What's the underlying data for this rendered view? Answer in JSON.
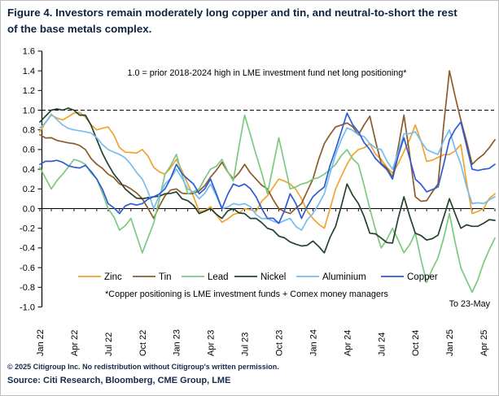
{
  "figure": {
    "title": "Figure 4. Investors remain moderately long copper and tin, and neutral-to-short the rest of the base metals complex.",
    "footer": {
      "copyright": "© 2025 Citigroup Inc. No redistribution without Citigroup's written permission.",
      "source": "Source: Citi Research, Bloomberg, CME Group, LME"
    }
  },
  "chart": {
    "annotation": "1.0 = prior 2018-2024 high in LME investment fund net long positioning*",
    "footnote": "*Copper positioning is LME investment funds + Comex money managers",
    "as_of": "To 23-May"
  },
  "colors": {
    "navy": "#0e2240",
    "axis": "#000000",
    "border": "#bdbdbd"
  },
  "chart_data": {
    "type": "line",
    "title": "Base metals investor net long positioning vs prior 2018-2024 high",
    "xlabel": "",
    "ylabel": "",
    "ylim": [
      -1.0,
      1.6
    ],
    "reference_line": 1.0,
    "grid": false,
    "legend_position": "bottom",
    "y_ticks": [
      1.6,
      1.4,
      1.2,
      1.0,
      0.8,
      0.6,
      0.4,
      0.2,
      0.0,
      -0.2,
      -0.4,
      -0.6,
      -0.8,
      -1.0
    ],
    "x_tick_labels": [
      "Jan 22",
      "Apr 22",
      "Jul 22",
      "Oct 22",
      "Jan 23",
      "Apr 23",
      "Jul 23",
      "Oct 23",
      "Jan 24",
      "Apr 24",
      "Jul 24",
      "Oct 24",
      "Jan 25",
      "Apr 25"
    ],
    "x_monthly": [
      "Jan 22",
      "Feb 22",
      "Mar 22",
      "Apr 22",
      "May 22",
      "Jun 22",
      "Jul 22",
      "Aug 22",
      "Sep 22",
      "Oct 22",
      "Nov 22",
      "Dec 22",
      "Jan 23",
      "Feb 23",
      "Mar 23",
      "Apr 23",
      "May 23",
      "Jun 23",
      "Jul 23",
      "Aug 23",
      "Sep 23",
      "Oct 23",
      "Nov 23",
      "Dec 23",
      "Jan 24",
      "Feb 24",
      "Mar 24",
      "Apr 24",
      "May 24",
      "Jun 24",
      "Jul 24",
      "Aug 24",
      "Sep 24",
      "Oct 24",
      "Nov 24",
      "Dec 24",
      "Jan 25",
      "Feb 25",
      "Mar 25",
      "Apr 25",
      "May 25"
    ],
    "series": [
      {
        "name": "Zinc",
        "color": "#f0a32f",
        "values": [
          0.78,
          0.95,
          0.9,
          0.97,
          0.93,
          0.8,
          0.83,
          0.62,
          0.57,
          0.6,
          0.42,
          0.35,
          0.5,
          0.25,
          -0.03,
          0.02,
          -0.14,
          -0.06,
          0.0,
          -0.03,
          0.13,
          0.3,
          0.25,
          0.1,
          -0.1,
          -0.2,
          0.2,
          0.45,
          0.6,
          0.66,
          0.5,
          0.36,
          0.58,
          0.85,
          0.48,
          0.52,
          0.55,
          0.65,
          -0.05,
          0.0,
          0.15
        ]
      },
      {
        "name": "Tin",
        "color": "#8c5a2b",
        "values": [
          0.75,
          0.72,
          0.68,
          0.66,
          0.6,
          0.45,
          0.35,
          0.25,
          0.2,
          0.1,
          -0.1,
          0.13,
          0.2,
          0.15,
          0.18,
          0.32,
          0.47,
          0.3,
          0.45,
          0.3,
          0.2,
          0.0,
          -0.05,
          0.05,
          0.3,
          0.66,
          0.83,
          0.87,
          0.75,
          0.94,
          0.46,
          0.32,
          0.95,
          0.12,
          0.08,
          0.25,
          1.4,
          0.9,
          0.45,
          0.55,
          0.7
        ]
      },
      {
        "name": "Lead",
        "color": "#7cc97f",
        "values": [
          0.42,
          0.2,
          0.35,
          0.5,
          0.45,
          0.3,
          0.0,
          -0.22,
          -0.1,
          -0.45,
          -0.15,
          0.35,
          0.55,
          0.15,
          0.2,
          0.4,
          0.5,
          0.28,
          0.95,
          0.55,
          0.15,
          0.72,
          0.2,
          0.25,
          0.3,
          0.35,
          0.45,
          0.6,
          0.45,
          0.0,
          -0.4,
          -0.2,
          -0.45,
          -0.25,
          -0.75,
          -0.5,
          -0.05,
          -0.6,
          -0.85,
          -0.55,
          -0.3
        ]
      },
      {
        "name": "Nickel",
        "color": "#24432c",
        "values": [
          0.88,
          1.0,
          1.0,
          1.0,
          0.95,
          0.7,
          0.45,
          0.28,
          0.15,
          0.1,
          0.12,
          0.15,
          0.17,
          0.08,
          -0.05,
          0.0,
          -0.1,
          0.0,
          -0.05,
          -0.1,
          -0.2,
          -0.28,
          -0.34,
          -0.38,
          -0.33,
          -0.45,
          -0.18,
          0.25,
          0.05,
          -0.25,
          -0.3,
          -0.35,
          0.12,
          -0.25,
          -0.32,
          -0.27,
          0.1,
          -0.2,
          -0.18,
          -0.15,
          -0.12
        ]
      },
      {
        "name": "Aluminium",
        "color": "#77bcf1",
        "values": [
          0.82,
          0.96,
          0.85,
          0.8,
          0.78,
          0.72,
          0.6,
          0.55,
          0.45,
          0.3,
          0.0,
          0.25,
          0.4,
          0.2,
          0.1,
          0.25,
          0.0,
          0.05,
          0.05,
          -0.06,
          -0.1,
          -0.15,
          -0.1,
          -0.22,
          -0.05,
          0.15,
          0.55,
          0.82,
          0.75,
          0.66,
          0.6,
          0.4,
          0.76,
          0.78,
          0.6,
          0.55,
          0.8,
          0.45,
          0.05,
          0.05,
          0.12
        ]
      },
      {
        "name": "Copper",
        "color": "#2e5cd5",
        "values": [
          0.45,
          0.48,
          0.47,
          0.42,
          0.44,
          0.3,
          0.05,
          -0.05,
          0.05,
          0.05,
          0.12,
          0.2,
          0.45,
          0.3,
          0.15,
          0.3,
          0.0,
          0.25,
          0.25,
          0.12,
          -0.1,
          -0.15,
          0.15,
          -0.1,
          0.12,
          0.22,
          0.6,
          0.97,
          0.78,
          0.6,
          0.45,
          0.3,
          0.72,
          0.3,
          0.17,
          0.22,
          0.7,
          0.88,
          0.4,
          0.4,
          0.45
        ]
      }
    ]
  }
}
